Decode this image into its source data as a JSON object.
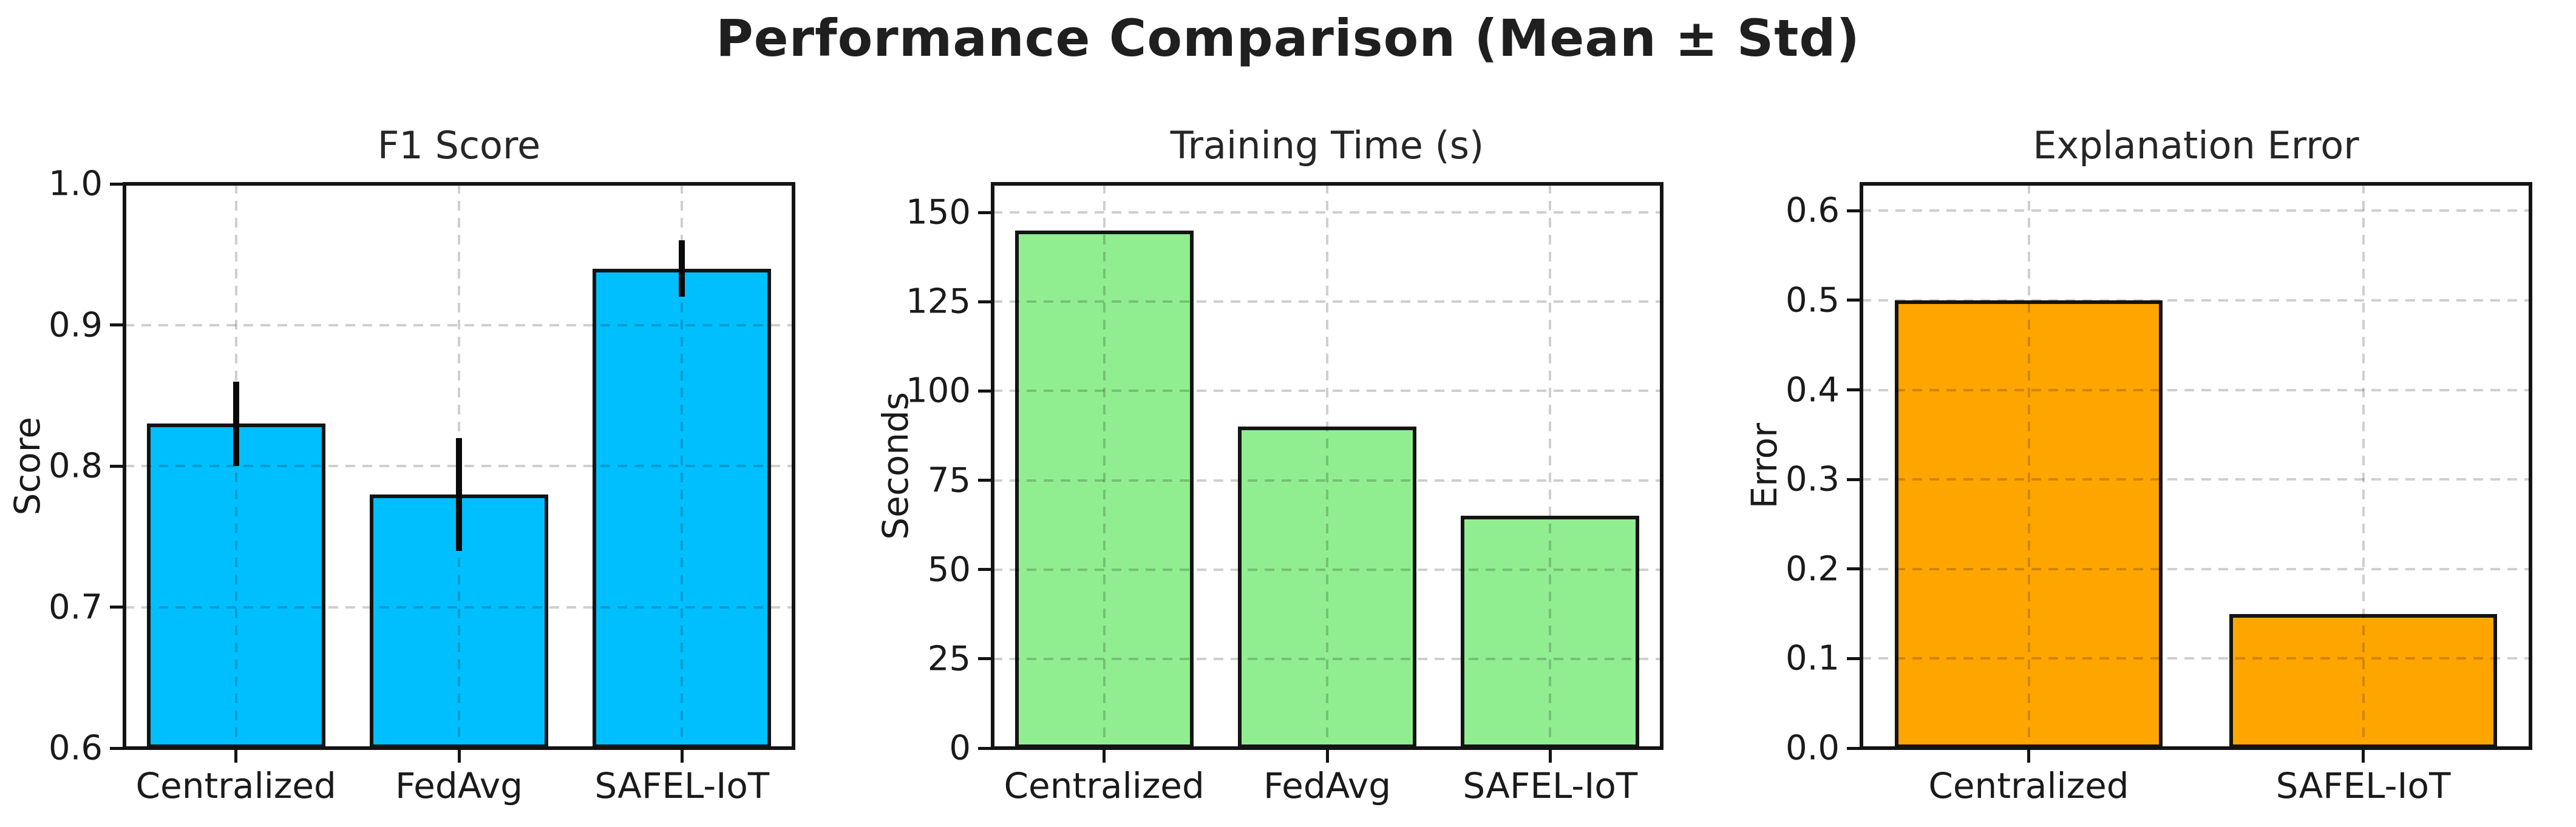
{
  "figure": {
    "title": "Performance Comparison (Mean ± Std)",
    "background_color": "#ffffff",
    "text_color": "#1a1a1a",
    "grid_style": "dashed",
    "grid_color": "#cccccc",
    "spine_color": "#141414"
  },
  "chart_data": [
    {
      "type": "bar",
      "title": "F1 Score",
      "ylabel": "Score",
      "categories": [
        "Centralized",
        "FedAvg",
        "SAFEL-IoT"
      ],
      "values": [
        0.83,
        0.78,
        0.94
      ],
      "errors": [
        0.03,
        0.04,
        0.02
      ],
      "bar_color": "#00BFFF",
      "yticks": [
        0.6,
        0.7,
        0.8,
        0.9,
        1.0
      ],
      "ytick_labels": [
        "0.6",
        "0.7",
        "0.8",
        "0.9",
        "1.0"
      ],
      "ylim": [
        0.6,
        1.0
      ],
      "grid": true,
      "legend": "none"
    },
    {
      "type": "bar",
      "title": "Training Time (s)",
      "ylabel": "Seconds",
      "categories": [
        "Centralized",
        "FedAvg",
        "SAFEL-IoT"
      ],
      "values": [
        145,
        90,
        65
      ],
      "errors": [
        0,
        0,
        0
      ],
      "bar_color": "#90EE90",
      "yticks": [
        0,
        25,
        50,
        75,
        100,
        125,
        150
      ],
      "ytick_labels": [
        "0",
        "25",
        "50",
        "75",
        "100",
        "125",
        "150"
      ],
      "ylim": [
        0,
        158
      ],
      "grid": true,
      "legend": "none"
    },
    {
      "type": "bar",
      "title": "Explanation Error",
      "ylabel": "Error",
      "categories": [
        "Centralized",
        "SAFEL-IoT"
      ],
      "values": [
        0.5,
        0.15
      ],
      "errors": [
        0,
        0
      ],
      "bar_color": "#FFA500",
      "yticks": [
        0.0,
        0.1,
        0.2,
        0.3,
        0.4,
        0.5,
        0.6
      ],
      "ytick_labels": [
        "0.0",
        "0.1",
        "0.2",
        "0.3",
        "0.4",
        "0.5",
        "0.6"
      ],
      "ylim": [
        0,
        0.63
      ],
      "grid": true,
      "legend": "none"
    }
  ]
}
